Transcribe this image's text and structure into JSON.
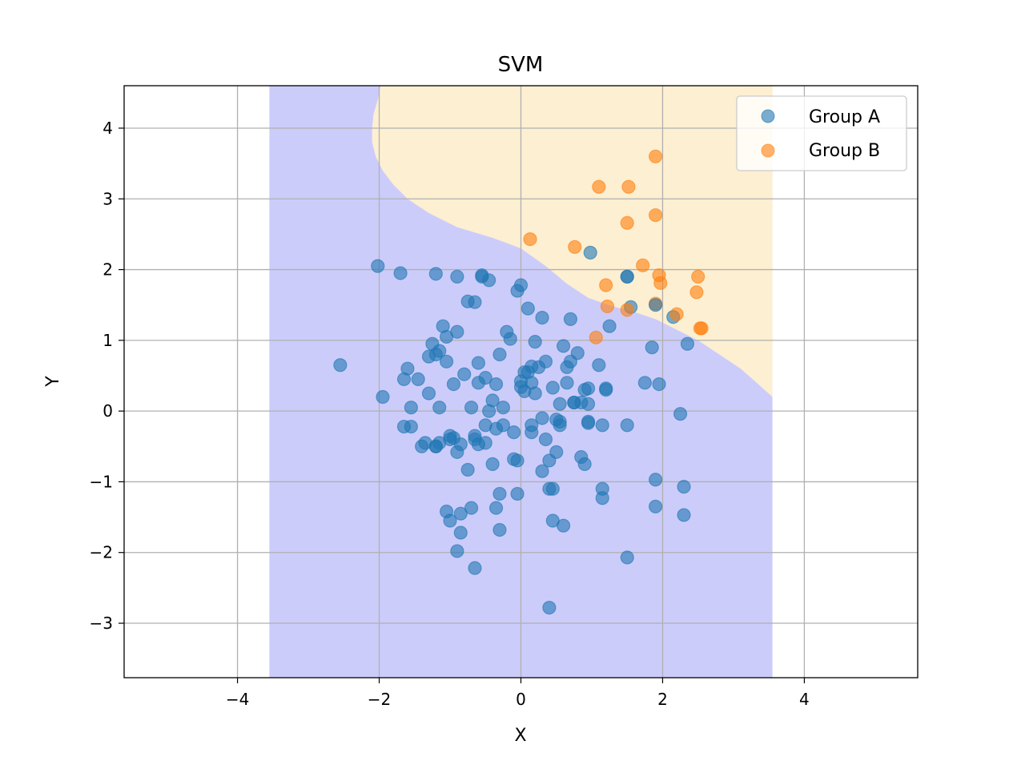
{
  "chart_data": {
    "type": "scatter",
    "title": "SVM",
    "xlabel": "X",
    "ylabel": "Y",
    "xlim": [
      -5.6,
      5.6
    ],
    "ylim": [
      -3.77,
      4.6
    ],
    "x_ticks": [
      -4,
      -2,
      0,
      2,
      4
    ],
    "y_ticks": [
      -3,
      -2,
      -1,
      0,
      1,
      2,
      3,
      4
    ],
    "x_tick_labels": [
      "−4",
      "−2",
      "0",
      "2",
      "4"
    ],
    "y_tick_labels": [
      "−3",
      "−2",
      "−1",
      "0",
      "1",
      "2",
      "3",
      "4"
    ],
    "grid": true,
    "legend_position": "top-right",
    "decision_regions": {
      "x_range": [
        -3.55,
        3.55
      ],
      "class_a_color": "#ccccfb",
      "class_b_color": "#fdefd1",
      "boundary": [
        [
          -1.98,
          4.6
        ],
        [
          -2.02,
          4.4
        ],
        [
          -2.08,
          4.2
        ],
        [
          -2.1,
          4.0
        ],
        [
          -2.1,
          3.8
        ],
        [
          -2.05,
          3.6
        ],
        [
          -1.95,
          3.4
        ],
        [
          -1.8,
          3.2
        ],
        [
          -1.6,
          3.0
        ],
        [
          -1.3,
          2.8
        ],
        [
          -0.9,
          2.6
        ],
        [
          -0.4,
          2.45
        ],
        [
          0.0,
          2.3
        ],
        [
          0.35,
          2.05
        ],
        [
          0.65,
          1.8
        ],
        [
          0.95,
          1.6
        ],
        [
          1.3,
          1.48
        ],
        [
          1.6,
          1.4
        ],
        [
          1.9,
          1.3
        ],
        [
          2.2,
          1.15
        ],
        [
          2.5,
          1.0
        ],
        [
          2.8,
          0.8
        ],
        [
          3.1,
          0.6
        ],
        [
          3.35,
          0.38
        ],
        [
          3.55,
          0.2
        ]
      ]
    },
    "series": [
      {
        "name": "Group A",
        "color": "#1f77b4",
        "x": [
          -2.55,
          -1.95,
          -2.02,
          -1.7,
          -1.6,
          -1.65,
          -1.55,
          -1.45,
          -1.3,
          -1.35,
          -1.25,
          -1.2,
          -1.15,
          -1.1,
          -1.05,
          -1.0,
          -1.05,
          -0.95,
          -0.9,
          -0.85,
          -0.75,
          -0.7,
          -0.6,
          -0.55,
          -0.5,
          -0.45,
          -0.4,
          -0.35,
          -0.3,
          -0.25,
          -0.2,
          -0.15,
          -0.1,
          -0.05,
          0.0,
          0.05,
          0.1,
          0.15,
          0.2,
          0.25,
          0.3,
          0.35,
          0.4,
          0.45,
          0.5,
          0.55,
          0.6,
          0.65,
          0.7,
          0.75,
          0.8,
          0.9,
          0.95,
          1.1,
          1.15,
          1.2,
          1.25,
          1.5,
          1.55,
          1.75,
          1.85,
          1.95,
          2.15,
          2.25,
          2.3,
          2.35,
          -1.2,
          -1.2,
          -0.9,
          -0.55,
          -0.45,
          -0.05,
          0.0,
          0.15,
          0.3,
          0.7,
          0.95,
          1.5,
          1.9,
          -1.3,
          -0.95,
          -0.65,
          -0.4,
          -0.25,
          0.2,
          0.65,
          0.85,
          -1.65,
          -1.55,
          -1.15,
          -0.8,
          -0.6,
          -0.3,
          -0.05,
          0.15,
          0.35,
          0.45,
          0.5,
          0.75,
          0.95,
          1.2,
          -1.4,
          -1.2,
          -1.0,
          -0.85,
          -0.6,
          -0.5,
          -0.1,
          0.0,
          0.3,
          0.55,
          0.85,
          -1.05,
          -1.0,
          -0.85,
          -0.7,
          -0.35,
          -0.3,
          0.4,
          0.45,
          0.6,
          1.15,
          1.9,
          2.3,
          -0.9,
          -0.65,
          0.4,
          1.5,
          -0.65,
          -0.5,
          0.1,
          0.55,
          0.95,
          1.15,
          -0.75,
          -0.9,
          -1.15,
          0.9,
          -0.35,
          -0.65,
          0.15,
          0.05
        ],
        "y": [
          0.65,
          0.2,
          2.05,
          1.95,
          0.6,
          0.45,
          0.05,
          0.45,
          0.25,
          -0.45,
          0.95,
          0.8,
          0.05,
          1.2,
          0.7,
          -0.35,
          1.05,
          0.38,
          1.9,
          -1.45,
          1.55,
          0.05,
          0.4,
          1.9,
          -0.45,
          0.0,
          0.15,
          -0.25,
          0.8,
          -0.2,
          1.12,
          1.02,
          -0.68,
          -0.7,
          1.78,
          0.55,
          1.45,
          0.63,
          0.98,
          0.62,
          1.32,
          0.7,
          -0.7,
          0.33,
          -0.12,
          -0.2,
          0.92,
          0.4,
          1.3,
          0.12,
          0.82,
          0.3,
          0.1,
          0.65,
          -0.2,
          0.3,
          1.2,
          -0.2,
          1.47,
          0.4,
          0.9,
          0.38,
          1.33,
          -0.04,
          -1.07,
          0.95,
          1.94,
          -0.5,
          1.12,
          1.92,
          1.85,
          1.7,
          0.42,
          0.4,
          -0.85,
          0.7,
          -0.15,
          1.9,
          -0.97,
          0.77,
          -0.38,
          -0.4,
          -0.75,
          0.05,
          0.25,
          0.62,
          0.12,
          -0.22,
          -0.22,
          -0.45,
          0.52,
          -0.47,
          -1.17,
          -1.17,
          -0.3,
          -0.4,
          -1.1,
          -0.58,
          0.12,
          0.32,
          0.32,
          -0.5,
          -0.5,
          -0.4,
          -0.47,
          0.68,
          0.47,
          -0.3,
          0.34,
          -0.1,
          0.1,
          -0.65,
          -1.42,
          -1.55,
          -1.72,
          -1.37,
          -1.37,
          -1.68,
          -1.1,
          -1.55,
          -1.62,
          -1.23,
          -1.35,
          -1.47,
          -1.98,
          -2.22,
          -2.78,
          -2.07,
          -0.35,
          -0.2,
          0.55,
          -0.15,
          -0.17,
          -1.1,
          -0.83,
          -0.58,
          0.85,
          -0.75,
          0.38,
          1.54,
          -0.2,
          0.28
        ],
        "marker_radius": 8,
        "opacity": 0.6
      },
      {
        "name": "Group B",
        "color": "#ff7f0e",
        "x": [
          1.9,
          1.1,
          1.52,
          1.9,
          1.5,
          0.13,
          0.76,
          1.72,
          1.95,
          1.97,
          2.5,
          1.2,
          2.48,
          1.22,
          1.9,
          1.5,
          2.2,
          1.06,
          2.55,
          2.53
        ],
        "y": [
          3.6,
          3.17,
          3.17,
          2.77,
          2.66,
          2.43,
          2.32,
          2.06,
          1.92,
          1.81,
          1.9,
          1.78,
          1.68,
          1.48,
          1.52,
          1.43,
          1.37,
          1.04,
          1.17,
          1.17
        ],
        "marker_radius": 8,
        "opacity": 0.6
      },
      {
        "name": "",
        "color": "#1f77b4",
        "x": [
          0.98,
          1.5,
          1.9
        ],
        "y": [
          2.24,
          1.9,
          1.5
        ],
        "marker_radius": 8,
        "opacity": 0.6
      }
    ]
  }
}
